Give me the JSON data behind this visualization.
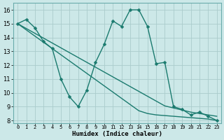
{
  "xlabel": "Humidex (Indice chaleur)",
  "x": [
    0,
    1,
    2,
    3,
    4,
    5,
    6,
    7,
    8,
    9,
    10,
    11,
    12,
    13,
    14,
    15,
    16,
    17,
    18,
    19,
    20,
    21,
    22,
    23
  ],
  "line_wavy": [
    15.0,
    15.3,
    14.7,
    13.7,
    13.2,
    11.0,
    9.7,
    9.0,
    10.2,
    12.2,
    13.5,
    15.2,
    14.8,
    16.0,
    16.0,
    14.8,
    12.1,
    12.2,
    9.0,
    8.8,
    8.4,
    8.6,
    8.3,
    8.0
  ],
  "line_top": [
    15.0,
    14.65,
    14.3,
    13.95,
    13.6,
    13.25,
    12.9,
    12.55,
    12.2,
    11.85,
    11.5,
    11.15,
    10.8,
    10.45,
    10.1,
    9.75,
    9.4,
    9.05,
    8.9,
    8.75,
    8.6,
    8.5,
    8.4,
    8.3
  ],
  "line_bot": [
    15.0,
    14.55,
    14.1,
    13.65,
    13.2,
    12.75,
    12.3,
    11.85,
    11.4,
    10.95,
    10.5,
    10.05,
    9.6,
    9.15,
    8.7,
    8.5,
    8.4,
    8.35,
    8.3,
    8.25,
    8.2,
    8.15,
    8.1,
    8.0
  ],
  "line_color": "#1a7a6e",
  "bg_color": "#cce8e8",
  "grid_color": "#aacccc",
  "ylim": [
    7.8,
    16.5
  ],
  "yticks": [
    8,
    9,
    10,
    11,
    12,
    13,
    14,
    15,
    16
  ],
  "marker_size": 2.5,
  "line_width": 1.0
}
